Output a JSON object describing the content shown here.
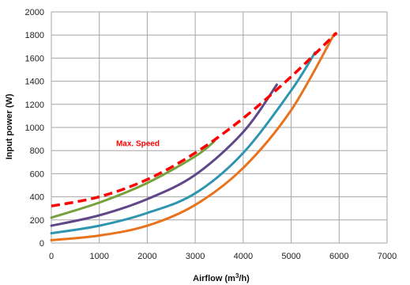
{
  "chart_data": {
    "type": "line",
    "xlabel_main": "Airflow (m",
    "xlabel_sup": "3",
    "xlabel_end": "/h)",
    "ylabel": "Input power (W)",
    "xlim": [
      0,
      7000
    ],
    "ylim": [
      0,
      2000
    ],
    "xticks": [
      "0",
      "1000",
      "2000",
      "3000",
      "4000",
      "5000",
      "6000",
      "7000"
    ],
    "yticks": [
      "0",
      "200",
      "400",
      "600",
      "800",
      "1000",
      "1200",
      "1400",
      "1600",
      "1800",
      "2000"
    ],
    "grid": true,
    "annotation": {
      "text": "Max. Speed",
      "x": 1350,
      "y": 840,
      "color": "#ff0000"
    },
    "series": [
      {
        "color": "#e8731c",
        "style": "solid",
        "x": [
          0,
          1000,
          2000,
          3000,
          4000,
          5000,
          5900
        ],
        "y": [
          25,
          65,
          150,
          330,
          650,
          1150,
          1810
        ]
      },
      {
        "color": "#2e95b0",
        "style": "solid",
        "x": [
          0,
          1000,
          2000,
          3000,
          4000,
          5000,
          5500
        ],
        "y": [
          85,
          150,
          260,
          430,
          780,
          1320,
          1650
        ]
      },
      {
        "color": "#5f4789",
        "style": "solid",
        "x": [
          0,
          1000,
          2000,
          3000,
          4000,
          4700
        ],
        "y": [
          150,
          240,
          380,
          590,
          960,
          1370
        ]
      },
      {
        "color": "#76a13c",
        "style": "solid",
        "x": [
          0,
          1000,
          2000,
          3000,
          3400
        ],
        "y": [
          220,
          350,
          520,
          750,
          880
        ]
      },
      {
        "color": "#ff0000",
        "style": "dashed",
        "x": [
          0,
          1000,
          2000,
          3000,
          4000,
          5000,
          5950
        ],
        "y": [
          320,
          400,
          550,
          780,
          1080,
          1440,
          1820
        ]
      }
    ]
  }
}
